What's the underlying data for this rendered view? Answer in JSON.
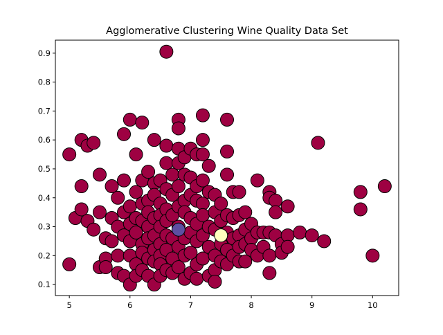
{
  "chart_data": {
    "type": "scatter",
    "title": "Agglomerative Clustering Wine Quality Data Set",
    "xlabel": "",
    "ylabel": "",
    "xlim": [
      4.77,
      10.43
    ],
    "ylim": [
      0.062,
      0.945
    ],
    "xticks": [
      5,
      6,
      7,
      8,
      9,
      10
    ],
    "yticks": [
      0.1,
      0.2,
      0.3,
      0.4,
      0.5,
      0.6,
      0.7,
      0.8,
      0.9
    ],
    "grid": false,
    "legend": "none",
    "colors": {
      "cluster_0": "#9e0142",
      "cluster_1": "#5e4fa2",
      "cluster_2": "#ffffbf",
      "edge": "#000000"
    },
    "series": [
      {
        "color": "#9e0142",
        "points": [
          [
            5.0,
            0.55
          ],
          [
            5.0,
            0.17
          ],
          [
            5.1,
            0.33
          ],
          [
            5.2,
            0.6
          ],
          [
            5.2,
            0.44
          ],
          [
            5.2,
            0.36
          ],
          [
            5.3,
            0.58
          ],
          [
            5.3,
            0.32
          ],
          [
            5.4,
            0.59
          ],
          [
            5.4,
            0.29
          ],
          [
            5.5,
            0.48
          ],
          [
            5.5,
            0.35
          ],
          [
            5.5,
            0.16
          ],
          [
            5.6,
            0.26
          ],
          [
            5.6,
            0.19
          ],
          [
            5.6,
            0.16
          ],
          [
            5.7,
            0.44
          ],
          [
            5.7,
            0.33
          ],
          [
            5.7,
            0.25
          ],
          [
            5.8,
            0.4
          ],
          [
            5.8,
            0.3
          ],
          [
            5.8,
            0.2
          ],
          [
            5.8,
            0.14
          ],
          [
            5.9,
            0.62
          ],
          [
            5.9,
            0.46
          ],
          [
            5.9,
            0.35
          ],
          [
            5.9,
            0.27
          ],
          [
            5.9,
            0.13
          ],
          [
            6.0,
            0.67
          ],
          [
            6.0,
            0.37
          ],
          [
            6.0,
            0.31
          ],
          [
            6.0,
            0.25
          ],
          [
            6.0,
            0.2
          ],
          [
            6.0,
            0.1
          ],
          [
            6.1,
            0.55
          ],
          [
            6.1,
            0.42
          ],
          [
            6.1,
            0.33
          ],
          [
            6.1,
            0.28
          ],
          [
            6.1,
            0.17
          ],
          [
            6.1,
            0.13
          ],
          [
            6.2,
            0.66
          ],
          [
            6.2,
            0.46
          ],
          [
            6.2,
            0.38
          ],
          [
            6.2,
            0.32
          ],
          [
            6.2,
            0.24
          ],
          [
            6.2,
            0.21
          ],
          [
            6.2,
            0.15
          ],
          [
            6.3,
            0.49
          ],
          [
            6.3,
            0.39
          ],
          [
            6.3,
            0.35
          ],
          [
            6.3,
            0.3
          ],
          [
            6.3,
            0.26
          ],
          [
            6.3,
            0.19
          ],
          [
            6.3,
            0.13
          ],
          [
            6.4,
            0.6
          ],
          [
            6.4,
            0.45
          ],
          [
            6.4,
            0.41
          ],
          [
            6.4,
            0.33
          ],
          [
            6.4,
            0.27
          ],
          [
            6.4,
            0.22
          ],
          [
            6.4,
            0.18
          ],
          [
            6.4,
            0.1
          ],
          [
            6.5,
            0.46
          ],
          [
            6.5,
            0.38
          ],
          [
            6.5,
            0.34
          ],
          [
            6.5,
            0.3
          ],
          [
            6.5,
            0.24
          ],
          [
            6.5,
            0.2
          ],
          [
            6.5,
            0.17
          ],
          [
            6.5,
            0.13
          ],
          [
            6.6,
            0.905
          ],
          [
            6.6,
            0.58
          ],
          [
            6.6,
            0.52
          ],
          [
            6.6,
            0.43
          ],
          [
            6.6,
            0.36
          ],
          [
            6.6,
            0.32
          ],
          [
            6.6,
            0.27
          ],
          [
            6.6,
            0.22
          ],
          [
            6.6,
            0.15
          ],
          [
            6.7,
            0.48
          ],
          [
            6.7,
            0.41
          ],
          [
            6.7,
            0.34
          ],
          [
            6.7,
            0.26
          ],
          [
            6.7,
            0.19
          ],
          [
            6.7,
            0.14
          ],
          [
            6.8,
            0.67
          ],
          [
            6.8,
            0.64
          ],
          [
            6.8,
            0.57
          ],
          [
            6.8,
            0.52
          ],
          [
            6.8,
            0.44
          ],
          [
            6.8,
            0.37
          ],
          [
            6.8,
            0.3
          ],
          [
            6.8,
            0.23
          ],
          [
            6.8,
            0.16
          ],
          [
            6.9,
            0.54
          ],
          [
            6.9,
            0.48
          ],
          [
            6.9,
            0.39
          ],
          [
            6.9,
            0.35
          ],
          [
            6.9,
            0.26
          ],
          [
            6.9,
            0.2
          ],
          [
            6.9,
            0.12
          ],
          [
            7.0,
            0.57
          ],
          [
            7.0,
            0.47
          ],
          [
            7.0,
            0.41
          ],
          [
            7.0,
            0.33
          ],
          [
            7.0,
            0.28
          ],
          [
            7.0,
            0.21
          ],
          [
            7.0,
            0.14
          ],
          [
            7.1,
            0.55
          ],
          [
            7.1,
            0.44
          ],
          [
            7.1,
            0.39
          ],
          [
            7.1,
            0.31
          ],
          [
            7.1,
            0.25
          ],
          [
            7.1,
            0.17
          ],
          [
            7.1,
            0.12
          ],
          [
            7.2,
            0.685
          ],
          [
            7.2,
            0.6
          ],
          [
            7.2,
            0.55
          ],
          [
            7.2,
            0.46
          ],
          [
            7.2,
            0.38
          ],
          [
            7.2,
            0.34
          ],
          [
            7.2,
            0.27
          ],
          [
            7.2,
            0.19
          ],
          [
            7.3,
            0.51
          ],
          [
            7.3,
            0.42
          ],
          [
            7.3,
            0.3
          ],
          [
            7.3,
            0.23
          ],
          [
            7.3,
            0.13
          ],
          [
            7.4,
            0.41
          ],
          [
            7.4,
            0.35
          ],
          [
            7.4,
            0.29
          ],
          [
            7.4,
            0.2
          ],
          [
            7.4,
            0.15
          ],
          [
            7.4,
            0.11
          ],
          [
            7.5,
            0.38
          ],
          [
            7.5,
            0.32
          ],
          [
            7.5,
            0.24
          ],
          [
            7.5,
            0.18
          ],
          [
            7.6,
            0.67
          ],
          [
            7.6,
            0.56
          ],
          [
            7.6,
            0.48
          ],
          [
            7.6,
            0.34
          ],
          [
            7.6,
            0.28
          ],
          [
            7.6,
            0.22
          ],
          [
            7.6,
            0.17
          ],
          [
            7.7,
            0.42
          ],
          [
            7.7,
            0.33
          ],
          [
            7.7,
            0.26
          ],
          [
            7.7,
            0.2
          ],
          [
            7.8,
            0.42
          ],
          [
            7.8,
            0.34
          ],
          [
            7.8,
            0.27
          ],
          [
            7.8,
            0.23
          ],
          [
            7.8,
            0.18
          ],
          [
            7.9,
            0.35
          ],
          [
            7.9,
            0.29
          ],
          [
            7.9,
            0.24
          ],
          [
            7.9,
            0.18
          ],
          [
            8.0,
            0.31
          ],
          [
            8.0,
            0.26
          ],
          [
            8.0,
            0.22
          ],
          [
            8.1,
            0.46
          ],
          [
            8.1,
            0.28
          ],
          [
            8.1,
            0.2
          ],
          [
            8.2,
            0.28
          ],
          [
            8.2,
            0.23
          ],
          [
            8.3,
            0.42
          ],
          [
            8.3,
            0.4
          ],
          [
            8.3,
            0.28
          ],
          [
            8.3,
            0.2
          ],
          [
            8.3,
            0.14
          ],
          [
            8.4,
            0.39
          ],
          [
            8.4,
            0.35
          ],
          [
            8.4,
            0.27
          ],
          [
            8.5,
            0.24
          ],
          [
            8.5,
            0.21
          ],
          [
            8.6,
            0.37
          ],
          [
            8.6,
            0.27
          ],
          [
            8.6,
            0.23
          ],
          [
            8.8,
            0.28
          ],
          [
            9.0,
            0.27
          ],
          [
            9.1,
            0.59
          ],
          [
            9.2,
            0.25
          ],
          [
            9.8,
            0.42
          ],
          [
            9.8,
            0.36
          ],
          [
            10.0,
            0.2
          ],
          [
            10.2,
            0.44
          ]
        ]
      },
      {
        "color": "#5e4fa2",
        "points": [
          [
            6.8,
            0.29
          ]
        ]
      },
      {
        "color": "#ffffbf",
        "points": [
          [
            7.5,
            0.27
          ]
        ]
      }
    ]
  }
}
